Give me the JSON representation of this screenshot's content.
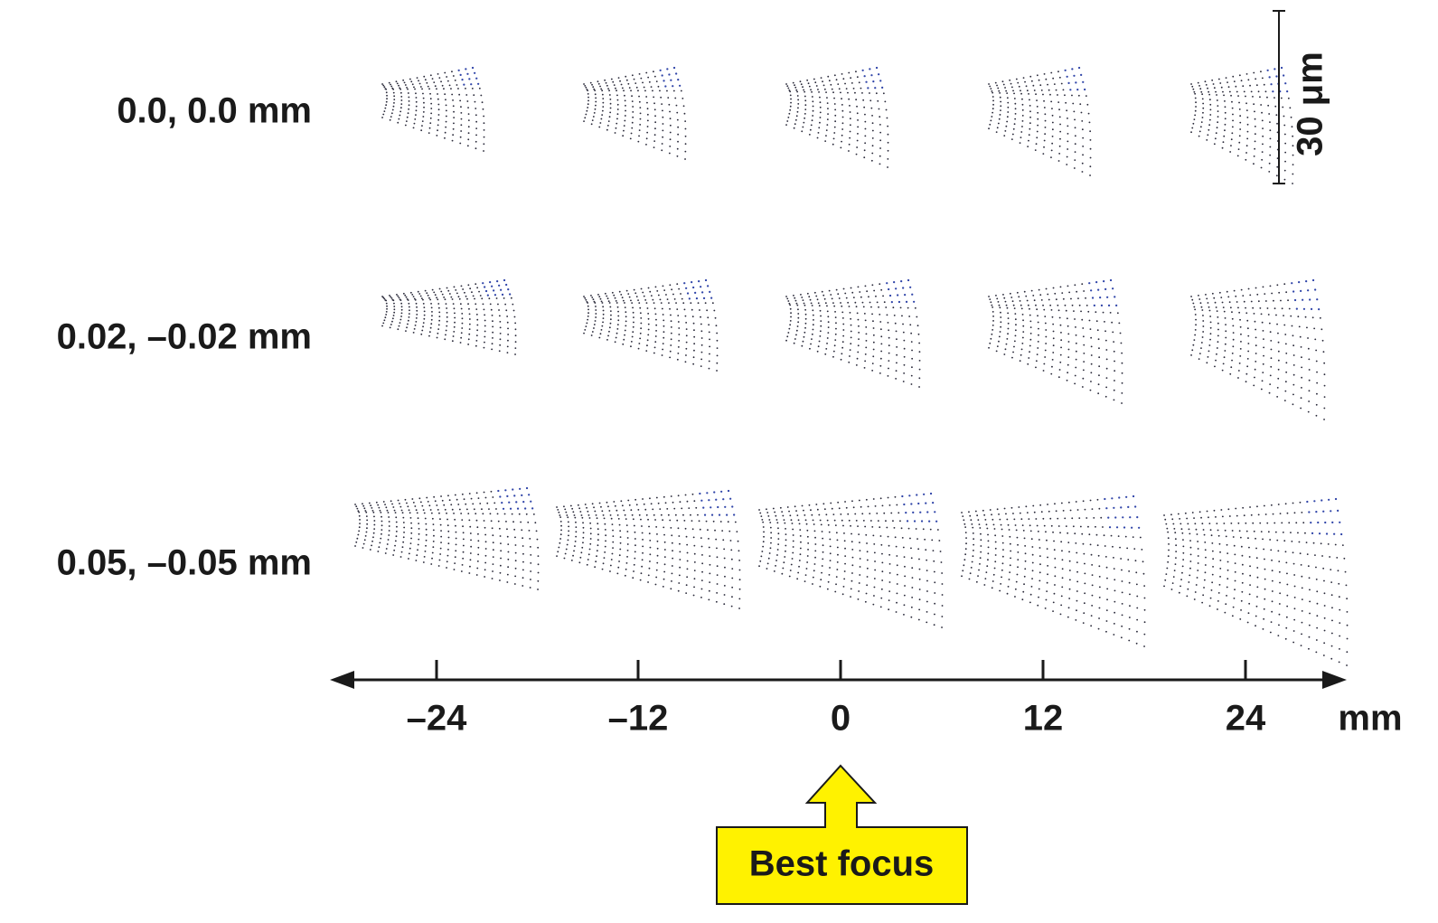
{
  "rows": [
    {
      "label": "0.0, 0.0 mm"
    },
    {
      "label": "0.02, –0.02 mm"
    },
    {
      "label": "0.05, –0.05 mm"
    }
  ],
  "axis": {
    "ticks": [
      "–24",
      "–12",
      "0",
      "12",
      "24"
    ],
    "unit": "mm"
  },
  "scale_bar": {
    "label": "30 μm"
  },
  "callout": {
    "label": "Best focus"
  }
}
